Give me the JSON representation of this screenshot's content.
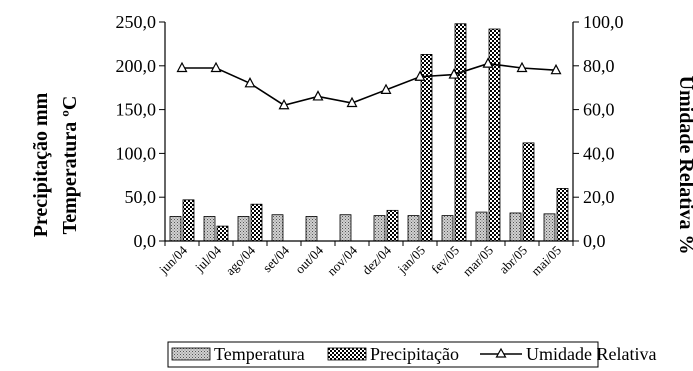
{
  "chart_data": {
    "type": "bar",
    "categories": [
      "jun/04",
      "jul/04",
      "ago/04",
      "set/04",
      "out/04",
      "nov/04",
      "dez/04",
      "jan/05",
      "fev/05",
      "mar/05",
      "abr/05",
      "mai/05"
    ],
    "series": [
      {
        "name": "Temperatura",
        "type": "bar",
        "axis": "left",
        "pattern": "dotted-gray",
        "values": [
          28,
          28,
          28,
          30,
          28,
          30,
          29,
          29,
          29,
          33,
          32,
          31
        ]
      },
      {
        "name": "Precipitação",
        "type": "bar",
        "axis": "left",
        "pattern": "checkered",
        "values": [
          47,
          17,
          42,
          0,
          0,
          0,
          35,
          213,
          248,
          242,
          112,
          60
        ]
      },
      {
        "name": "Umidade Relativa",
        "type": "line",
        "axis": "right",
        "marker": "triangle",
        "values": [
          79,
          79,
          72,
          62,
          66,
          63,
          69,
          75,
          76,
          81,
          79,
          78
        ]
      }
    ],
    "ylabel_left_line1": "Precipitação mm",
    "ylabel_left_line2": "Temperatura ºC",
    "ylabel_right": "Umidade Relativa %",
    "ylim_left": [
      0,
      250
    ],
    "ylim_right": [
      0,
      100
    ],
    "left_ticks": [
      "0,0",
      "50,0",
      "100,0",
      "150,0",
      "200,0",
      "250,0"
    ],
    "right_ticks": [
      "0,0",
      "20,0",
      "40,0",
      "60,0",
      "80,0",
      "100,0"
    ],
    "legend_position": "bottom",
    "colors": {
      "temperatura": "#b0b0b0",
      "precipitacao": "#000000",
      "line": "#000000"
    }
  }
}
